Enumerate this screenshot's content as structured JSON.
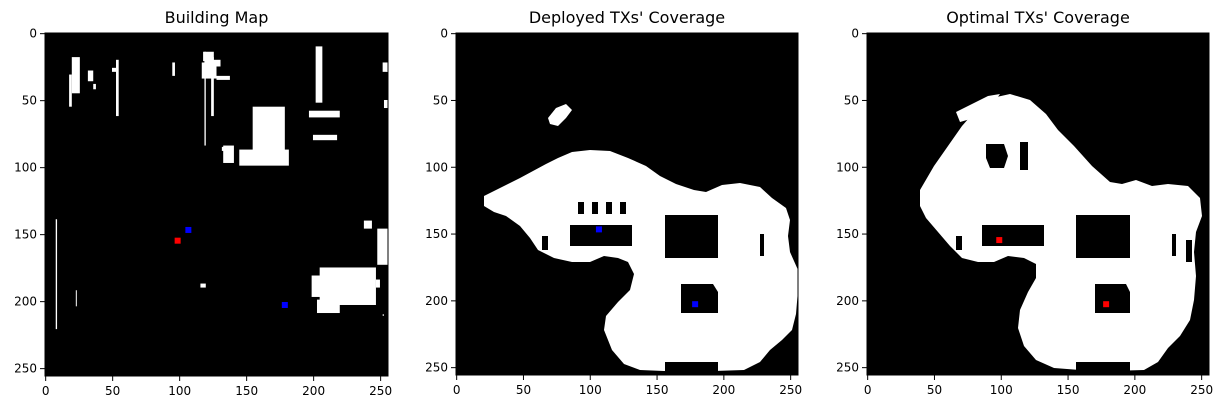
{
  "chart_data": [
    {
      "type": "heatmap",
      "title": "Building Map",
      "x": {
        "lim": [
          0,
          256
        ],
        "ticks": [
          0,
          50,
          100,
          150,
          200,
          250
        ]
      },
      "y": {
        "lim": [
          256,
          0
        ],
        "ticks": [
          0,
          50,
          100,
          150,
          200,
          250
        ]
      },
      "colormap": {
        "0": "#000000",
        "1": "#ffffff"
      },
      "white_regions": [
        [
          20,
          26,
          18,
          45
        ],
        [
          18,
          20,
          31,
          55
        ],
        [
          32,
          36,
          28,
          36
        ],
        [
          36,
          38,
          38,
          42
        ],
        [
          50,
          53,
          26,
          29
        ],
        [
          53,
          55,
          20,
          62
        ],
        [
          95,
          97,
          22,
          32
        ],
        [
          117,
          128,
          22,
          34
        ],
        [
          119,
          120,
          14,
          84
        ],
        [
          118,
          126,
          14,
          21
        ],
        [
          124,
          126,
          18,
          62
        ],
        [
          119,
          131,
          20,
          25
        ],
        [
          136,
          132,
          85,
          88
        ],
        [
          141,
          133,
          84,
          97
        ],
        [
          138,
          128,
          32,
          35
        ],
        [
          179,
          155,
          55,
          93
        ],
        [
          182,
          145,
          87,
          99
        ],
        [
          202,
          207,
          10,
          52
        ],
        [
          197,
          220,
          58,
          63
        ],
        [
          200,
          218,
          76,
          80
        ],
        [
          255,
          258,
          27,
          29
        ],
        [
          256,
          259,
          36,
          48
        ],
        [
          253,
          261,
          50,
          56
        ],
        [
          8,
          9,
          139,
          221
        ],
        [
          116,
          120,
          187,
          190
        ],
        [
          23,
          23,
          192,
          204
        ],
        [
          205,
          247,
          175,
          203
        ],
        [
          213,
          214,
          188,
          207
        ],
        [
          199,
          212,
          181,
          197
        ],
        [
          203,
          220,
          199,
          209
        ],
        [
          247,
          250,
          184,
          190
        ],
        [
          252,
          253,
          210,
          211
        ],
        [
          248,
          260,
          146,
          173
        ],
        [
          238,
          244,
          140,
          146
        ],
        [
          256,
          252,
          22,
          29
        ]
      ],
      "markers": [
        {
          "x": 107,
          "y": 147,
          "color": "#0000ff"
        },
        {
          "x": 99,
          "y": 155,
          "color": "#ff0000"
        },
        {
          "x": 179,
          "y": 203,
          "color": "#0000ff"
        }
      ]
    },
    {
      "type": "heatmap",
      "title": "Deployed TXs' Coverage",
      "x": {
        "lim": [
          0,
          256
        ],
        "ticks": [
          0,
          50,
          100,
          150,
          200,
          250
        ]
      },
      "y": {
        "lim": [
          256,
          0
        ],
        "ticks": [
          0,
          50,
          100,
          150,
          200,
          250
        ]
      },
      "colormap": {
        "0": "#000000",
        "1": "#ffffff"
      },
      "markers": [
        {
          "x": 107,
          "y": 147,
          "color": "#0000ff"
        },
        {
          "x": 179,
          "y": 203,
          "color": "#0000ff"
        }
      ]
    },
    {
      "type": "heatmap",
      "title": "Optimal TXs' Coverage",
      "x": {
        "lim": [
          0,
          256
        ],
        "ticks": [
          0,
          50,
          100,
          150,
          200,
          250
        ]
      },
      "y": {
        "lim": [
          256,
          0
        ],
        "ticks": [
          0,
          50,
          100,
          150,
          200,
          250
        ]
      },
      "colormap": {
        "0": "#000000",
        "1": "#ffffff"
      },
      "markers": [
        {
          "x": 99,
          "y": 155,
          "color": "#ff0000"
        },
        {
          "x": 179,
          "y": 203,
          "color": "#ff0000"
        }
      ]
    }
  ]
}
